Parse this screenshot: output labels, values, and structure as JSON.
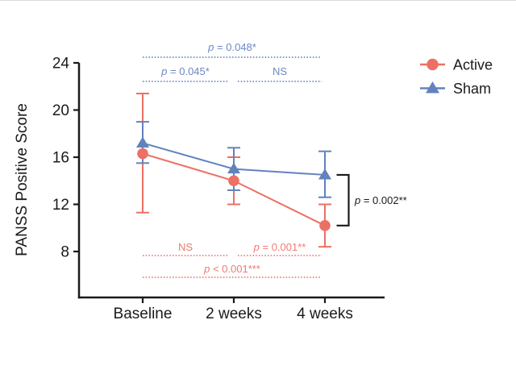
{
  "chart_data": {
    "type": "line",
    "title": "",
    "xlabel": "",
    "ylabel": "PANSS Positive Score",
    "categories": [
      "Baseline",
      "2 weeks",
      "4 weeks"
    ],
    "yticks": [
      8,
      12,
      16,
      20,
      24
    ],
    "ylim": [
      4.1,
      24
    ],
    "grid": false,
    "legend_position": "top-right",
    "colors": {
      "active": "#EC7065",
      "sham": "#6282BE",
      "annotation_red": "#EF7B71",
      "annotation_blue": "#6B88C5",
      "axis": "#1A1A1A"
    },
    "series": [
      {
        "name": "Active",
        "marker": "circle",
        "color": "#EC7065",
        "values": [
          16.3,
          14.0,
          10.2
        ],
        "err_lo": [
          11.3,
          12.0,
          8.4
        ],
        "err_hi": [
          21.4,
          16.0,
          12.0
        ]
      },
      {
        "name": "Sham",
        "marker": "triangle",
        "color": "#6282BE",
        "values": [
          17.2,
          15.0,
          14.5
        ],
        "err_lo": [
          15.5,
          13.2,
          12.6
        ],
        "err_hi": [
          19.0,
          16.8,
          16.5
        ]
      }
    ],
    "comparisons_top": [
      {
        "label": "p = 0.048*",
        "from": 0,
        "to": 2,
        "row": 0
      },
      {
        "label": "p = 0.045*",
        "from": 0,
        "to": 1,
        "row": 1
      },
      {
        "label": "NS",
        "from": 1,
        "to": 2,
        "row": 1
      }
    ],
    "comparisons_bottom": [
      {
        "label": "NS",
        "from": 0,
        "to": 1,
        "row": 0
      },
      {
        "label": "p = 0.001**",
        "from": 1,
        "to": 2,
        "row": 0
      },
      {
        "label": "p < 0.001***",
        "from": 0,
        "to": 2,
        "row": 1
      }
    ],
    "bracket": {
      "label": "p = 0.002**",
      "category": 2,
      "series_a": "Sham",
      "series_b": "Active"
    },
    "legend": {
      "items": [
        {
          "label": "Active",
          "marker": "circle",
          "color": "#EC7065"
        },
        {
          "label": "Sham",
          "marker": "triangle",
          "color": "#6282BE"
        }
      ]
    }
  }
}
